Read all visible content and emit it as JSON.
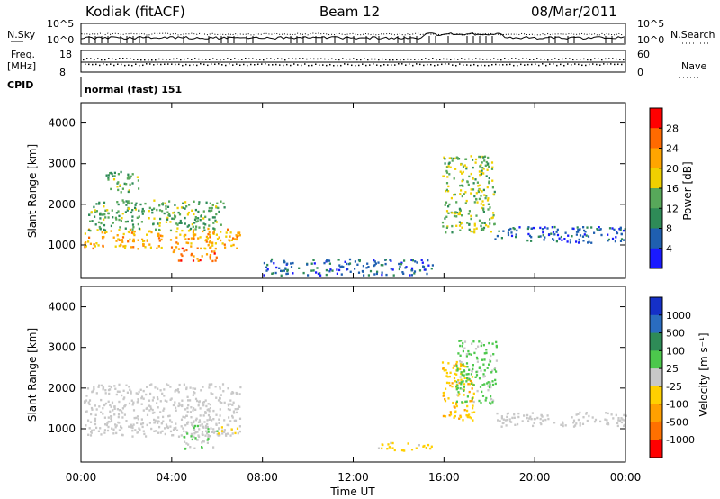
{
  "header": {
    "title": "Kodiak (fitACF)",
    "beam": "Beam 12",
    "date": "08/Mar/2011"
  },
  "top_panels": {
    "nsky_label": "N.Sky",
    "nsearch_label": "N.Search",
    "noise_ticks": [
      "10^5",
      "10^0"
    ],
    "freq_label_1": "Freq.",
    "freq_label_2": "[MHz]",
    "freq_ticks": [
      "18",
      "8"
    ],
    "nave_label": "Nave",
    "nave_ticks": [
      "60",
      "0"
    ],
    "cpid_label": "CPID",
    "cpid_text": "normal (fast) 151"
  },
  "colors": {
    "power_scale": [
      "#1a1aff",
      "#1f5fb0",
      "#2e8b57",
      "#57a85a",
      "#f0d000",
      "#ffa500",
      "#ff6a00",
      "#ff0000"
    ],
    "velocity_scale": [
      "#1530c8",
      "#2a6cc0",
      "#2e8b57",
      "#4cc84c",
      "#c8c8c8",
      "#ffd000",
      "#ffa000",
      "#ff7000",
      "#ff0000"
    ]
  },
  "chart_data": [
    {
      "type": "heatmap",
      "name": "power",
      "ylabel": "Slant Range [km]",
      "yticks": [
        "4000",
        "3000",
        "2000",
        "1000"
      ],
      "ylim": [
        180,
        4500
      ],
      "colorbar_label": "Power [dB]",
      "colorbar_ticks": [
        "28",
        "24",
        "20",
        "16",
        "12",
        "8",
        "4"
      ],
      "colorbar_range": [
        0,
        30
      ],
      "regions": [
        {
          "t": [
            0.1,
            7.0
          ],
          "r": [
            900,
            1400
          ],
          "level": 20
        },
        {
          "t": [
            0.3,
            6.3
          ],
          "r": [
            1350,
            2100
          ],
          "level": 12
        },
        {
          "t": [
            4.0,
            6.0
          ],
          "r": [
            600,
            950
          ],
          "level": 24
        },
        {
          "t": [
            1.0,
            2.5
          ],
          "r": [
            2300,
            2800
          ],
          "level": 12
        },
        {
          "t": [
            8.0,
            15.5
          ],
          "r": [
            250,
            650
          ],
          "level": 6
        },
        {
          "t": [
            15.9,
            18.2
          ],
          "r": [
            1300,
            3200
          ],
          "level": 14
        },
        {
          "t": [
            18.2,
            24.0
          ],
          "r": [
            1050,
            1450
          ],
          "level": 6
        }
      ]
    },
    {
      "type": "heatmap",
      "name": "velocity",
      "ylabel": "Slant Range [km]",
      "yticks": [
        "4000",
        "3000",
        "2000",
        "1000"
      ],
      "ylim": [
        180,
        4500
      ],
      "colorbar_label": "Velocity [m s⁻¹]",
      "colorbar_ticks": [
        "1000",
        "500",
        "100",
        "25",
        "-25",
        "-100",
        "-500",
        "-1000"
      ],
      "colorbar_range": [
        -1000,
        1000
      ],
      "xlabel": "Time UT",
      "xticks": [
        "00:00",
        "04:00",
        "08:00",
        "12:00",
        "16:00",
        "20:00",
        "00:00"
      ],
      "xlim": [
        0,
        24
      ],
      "regions": [
        {
          "t": [
            0.1,
            7.0
          ],
          "r": [
            800,
            2100
          ],
          "level": 0
        },
        {
          "t": [
            4.5,
            6.0
          ],
          "r": [
            500,
            1100
          ],
          "level": 120
        },
        {
          "t": [
            6.0,
            7.0
          ],
          "r": [
            850,
            1050
          ],
          "level": -150
        },
        {
          "t": [
            13.0,
            15.5
          ],
          "r": [
            450,
            650
          ],
          "level": -150
        },
        {
          "t": [
            15.9,
            17.3
          ],
          "r": [
            1200,
            2700
          ],
          "level": -300
        },
        {
          "t": [
            16.5,
            18.3
          ],
          "r": [
            1600,
            3200
          ],
          "level": 150
        },
        {
          "t": [
            18.3,
            24.0
          ],
          "r": [
            1050,
            1400
          ],
          "level": 0
        }
      ]
    }
  ]
}
